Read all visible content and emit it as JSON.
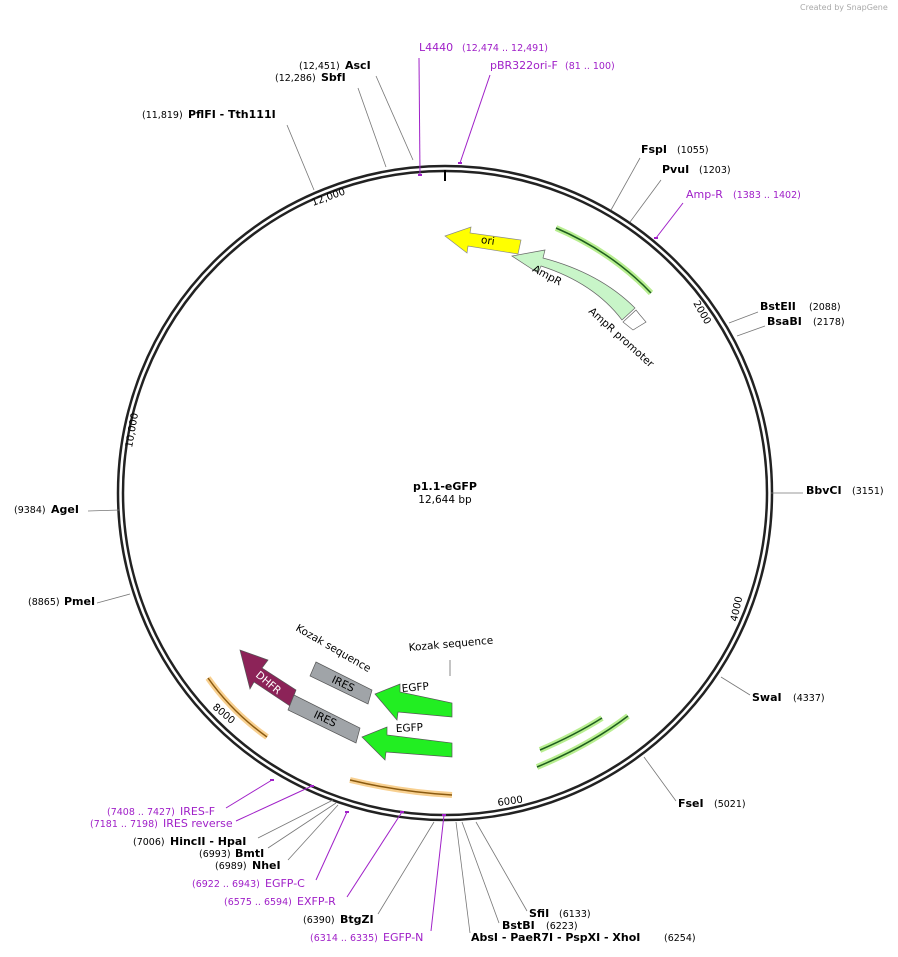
{
  "header": {
    "credit": "Created by SnapGene"
  },
  "plasmid": {
    "name": "p1.1-eGFP",
    "size": "12,644 bp"
  },
  "ruler": [
    "2000",
    "4000",
    "6000",
    "8000",
    "10,000",
    "12,000"
  ],
  "enzymes": [
    {
      "name": "AscI",
      "position": "(12,451)"
    },
    {
      "name": "SbfI",
      "position": "(12,286)"
    },
    {
      "name": "PflFI - Tth111I",
      "position": "(11,819)"
    },
    {
      "name": "FspI",
      "position": "(1055)"
    },
    {
      "name": "PvuI",
      "position": "(1203)"
    },
    {
      "name": "BstEII",
      "position": "(2088)"
    },
    {
      "name": "BsaBI",
      "position": "(2178)"
    },
    {
      "name": "BbvCI",
      "position": "(3151)"
    },
    {
      "name": "SwaI",
      "position": "(4337)"
    },
    {
      "name": "FseI",
      "position": "(5021)"
    },
    {
      "name": "SfiI",
      "position": "(6133)"
    },
    {
      "name": "BstBI",
      "position": "(6223)"
    },
    {
      "name": "AbsI - PaeR7I - PspXI - XhoI",
      "position": "(6254)"
    },
    {
      "name": "BtgZI",
      "position": "(6390)"
    },
    {
      "name": "NheI",
      "position": "(6989)"
    },
    {
      "name": "BmtI",
      "position": "(6993)"
    },
    {
      "name": "HincII - HpaI",
      "position": "(7006)"
    },
    {
      "name": "PmeI",
      "position": "(8865)"
    },
    {
      "name": "AgeI",
      "position": "(9384)"
    }
  ],
  "primers": [
    {
      "name": "L4440",
      "range": "(12,474 .. 12,491)"
    },
    {
      "name": "pBR322ori-F",
      "range": "(81 .. 100)"
    },
    {
      "name": "Amp-R",
      "range": "(1383 .. 1402)"
    },
    {
      "name": "IRES-F",
      "range": "(7408 .. 7427)"
    },
    {
      "name": "IRES reverse",
      "range": "(7181 .. 7198)"
    },
    {
      "name": "EGFP-C",
      "range": "(6922 .. 6943)"
    },
    {
      "name": "EXFP-R",
      "range": "(6575 .. 6594)"
    },
    {
      "name": "EGFP-N",
      "range": "(6314 .. 6335)"
    }
  ],
  "features": [
    {
      "label": "ori"
    },
    {
      "label": "AmpR"
    },
    {
      "label": "AmpR promoter"
    },
    {
      "label": "Kozak sequence"
    },
    {
      "label": "Kozak sequence"
    },
    {
      "label": "IRES"
    },
    {
      "label": "IRES"
    },
    {
      "label": "EGFP"
    },
    {
      "label": "EGFP"
    },
    {
      "label": "DHFR"
    }
  ]
}
